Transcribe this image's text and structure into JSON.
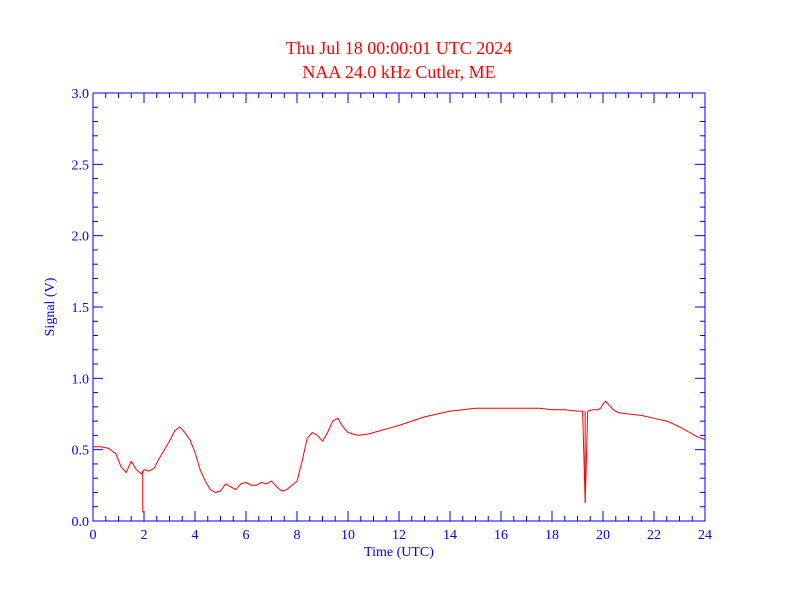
{
  "colors": {
    "title": "#ff0000",
    "axes": "#0000ff",
    "series": "#ff0000",
    "background": "#ffffff"
  },
  "chart_data": {
    "type": "line",
    "title": "Thu Jul 18 00:00:01 UTC 2024",
    "subtitle": "NAA 24.0 kHz Cutler, ME",
    "xlabel": "Time (UTC)",
    "ylabel": "Signal (V)",
    "xlim": [
      0,
      24
    ],
    "ylim": [
      0,
      3.0
    ],
    "x_ticks": [
      "0",
      "2",
      "4",
      "6",
      "8",
      "10",
      "12",
      "14",
      "16",
      "18",
      "20",
      "22",
      "24"
    ],
    "y_ticks": [
      "0.0",
      "0.5",
      "1.0",
      "1.5",
      "2.0",
      "2.5",
      "3.0"
    ],
    "grid": false,
    "series": [
      {
        "x": [
          0.0,
          0.3,
          0.6,
          0.9,
          1.1,
          1.3,
          1.5,
          1.7,
          1.9,
          2.0,
          2.2,
          2.4,
          2.6,
          2.8,
          3.0,
          3.2,
          3.4,
          3.6,
          3.8,
          4.0,
          4.2,
          4.4,
          4.6,
          4.8,
          5.0,
          5.2,
          5.4,
          5.6,
          5.8,
          6.0,
          6.2,
          6.4,
          6.6,
          6.8,
          7.0,
          7.2,
          7.4,
          7.6,
          7.8,
          8.0,
          8.2,
          8.4,
          8.6,
          8.8,
          9.0,
          9.2,
          9.4,
          9.6,
          9.8,
          10.0,
          10.4,
          10.8,
          11.2,
          11.6,
          12.0,
          12.5,
          13.0,
          13.5,
          14.0,
          14.5,
          15.0,
          15.5,
          16.0,
          16.5,
          17.0,
          17.5,
          18.0,
          18.5,
          19.0,
          19.2,
          19.3,
          19.4,
          19.6,
          19.8,
          19.9,
          20.0,
          20.1,
          20.2,
          20.4,
          20.6,
          21.0,
          21.5,
          22.0,
          22.5,
          23.0,
          23.4,
          23.7,
          24.0
        ],
        "values": [
          0.52,
          0.52,
          0.51,
          0.47,
          0.38,
          0.34,
          0.42,
          0.36,
          0.33,
          0.36,
          0.35,
          0.37,
          0.44,
          0.5,
          0.56,
          0.63,
          0.66,
          0.62,
          0.57,
          0.48,
          0.36,
          0.28,
          0.22,
          0.2,
          0.21,
          0.26,
          0.24,
          0.22,
          0.26,
          0.27,
          0.25,
          0.25,
          0.27,
          0.26,
          0.28,
          0.24,
          0.21,
          0.22,
          0.25,
          0.28,
          0.42,
          0.58,
          0.62,
          0.6,
          0.56,
          0.62,
          0.7,
          0.72,
          0.66,
          0.62,
          0.6,
          0.61,
          0.63,
          0.65,
          0.67,
          0.7,
          0.73,
          0.75,
          0.77,
          0.78,
          0.79,
          0.79,
          0.79,
          0.79,
          0.79,
          0.79,
          0.78,
          0.78,
          0.77,
          0.77,
          0.13,
          0.77,
          0.78,
          0.78,
          0.79,
          0.82,
          0.84,
          0.82,
          0.78,
          0.76,
          0.75,
          0.74,
          0.72,
          0.7,
          0.66,
          0.62,
          0.59,
          0.57
        ],
        "spikes": [
          {
            "x": 1.95,
            "y_low": 0.06,
            "y_high": 0.35
          },
          {
            "x": 19.3,
            "y_low": 0.13,
            "y_high": 0.77
          }
        ]
      }
    ]
  }
}
